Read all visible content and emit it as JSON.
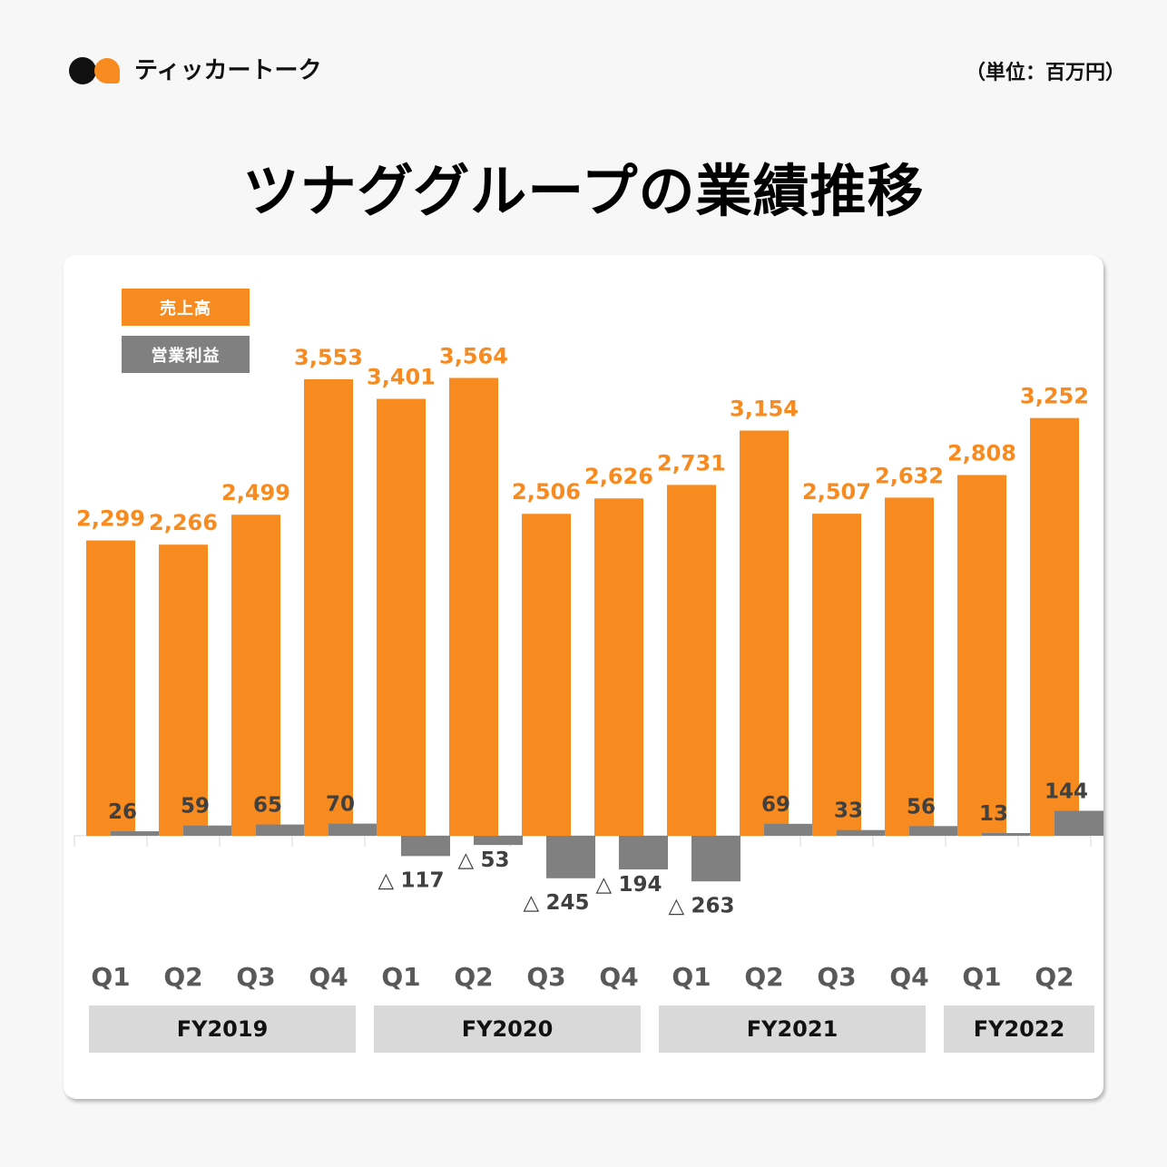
{
  "brand": {
    "name": "ティッカートーク",
    "logo_icon": "speech-bubbles-icon"
  },
  "unit_label": "（単位：百万円）",
  "title": "ツナググループの業績推移",
  "colors": {
    "revenue": "#F88B1F",
    "operating_profit": "#808080",
    "negative_label": "#404040",
    "fiscal_year_band": "#D9D9D9"
  },
  "legend": {
    "revenue": "売上高",
    "operating_profit": "営業利益"
  },
  "chart_data": {
    "type": "bar",
    "title": "ツナググループの業績推移",
    "xlabel": "",
    "ylabel": "百万円",
    "grid": false,
    "legend_position": "top-left",
    "negative_prefix": "△",
    "categories": [
      "Q1",
      "Q2",
      "Q3",
      "Q4",
      "Q1",
      "Q2",
      "Q3",
      "Q4",
      "Q1",
      "Q2",
      "Q3",
      "Q4",
      "Q1",
      "Q2"
    ],
    "fiscal_years": [
      {
        "label": "FY2019",
        "quarters": 4
      },
      {
        "label": "FY2020",
        "quarters": 4
      },
      {
        "label": "FY2021",
        "quarters": 4
      },
      {
        "label": "FY2022",
        "quarters": 2
      }
    ],
    "series": [
      {
        "name": "売上高",
        "values": [
          2299,
          2266,
          2499,
          3553,
          3401,
          3564,
          2506,
          2626,
          2731,
          3154,
          2507,
          2632,
          2808,
          3252
        ]
      },
      {
        "name": "営業利益",
        "values": [
          26,
          59,
          65,
          70,
          -117,
          -53,
          -245,
          -194,
          -263,
          69,
          33,
          56,
          13,
          144
        ]
      }
    ],
    "ylim": [
      -400,
      3700
    ]
  }
}
